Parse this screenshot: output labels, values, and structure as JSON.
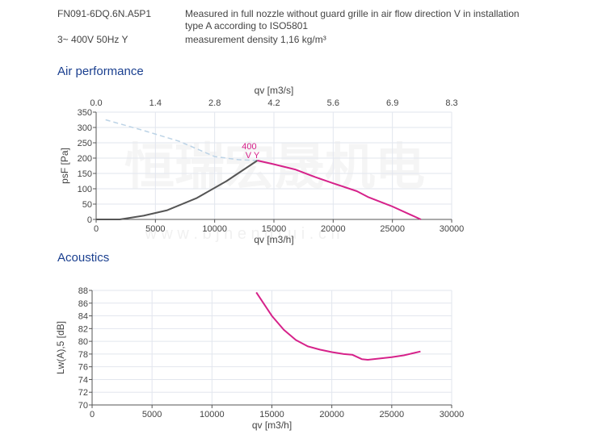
{
  "header": {
    "model": "FN091-6DQ.6N.A5P1",
    "supply": "3~ 400V 50Hz Y",
    "note1": "Measured in full nozzle without guard grille in air flow direction V in installation",
    "note2": "type A according to ISO5801",
    "note3": "measurement density 1,16 kg/m³"
  },
  "watermark": {
    "cn": "恒瑞宏晟机电",
    "url": "w w w . b j h e n g r u i . c n"
  },
  "colors": {
    "curve": "#d6228a",
    "lower": "#555555",
    "dashed": "#bcd3e6",
    "grid": "#e2e6ee",
    "title": "#1a3f8f"
  },
  "chart_data": [
    {
      "type": "line",
      "title": "Air performance",
      "xlabel": "qv [m3/h]",
      "x2label": "qv [m3/s]",
      "ylabel": "psF [Pa]",
      "xlim": [
        0,
        30000
      ],
      "ylim": [
        0,
        350
      ],
      "xticks": [
        "0",
        "5000",
        "10000",
        "15000",
        "20000",
        "25000",
        "30000"
      ],
      "x2ticks": [
        "0.0",
        "1.4",
        "2.8",
        "4.2",
        "5.6",
        "6.9",
        "8.3"
      ],
      "yticks": [
        "0",
        "50",
        "100",
        "150",
        "200",
        "250",
        "300",
        "350"
      ],
      "grid": true,
      "annotation": {
        "line1": "400",
        "line2": "V Y",
        "x": 13600,
        "y": 192
      },
      "series": [
        {
          "style": "dashed",
          "color": "#bcd3e6",
          "points": [
            [
              800,
              325
            ],
            [
              4000,
              290
            ],
            [
              7000,
              255
            ],
            [
              10000,
              205
            ],
            [
              12000,
              195
            ],
            [
              13600,
              192
            ]
          ]
        },
        {
          "style": "solid",
          "color": "#555555",
          "points": [
            [
              0,
              0
            ],
            [
              2000,
              0
            ],
            [
              4000,
              12
            ],
            [
              6000,
              30
            ],
            [
              8500,
              70
            ],
            [
              11000,
              125
            ],
            [
              13600,
              192
            ]
          ]
        },
        {
          "style": "solid",
          "color": "#d6228a",
          "points": [
            [
              13600,
              192
            ],
            [
              15000,
              180
            ],
            [
              16800,
              163
            ],
            [
              18500,
              138
            ],
            [
              20000,
              118
            ],
            [
              22000,
              92
            ],
            [
              23000,
              72
            ],
            [
              25000,
              42
            ],
            [
              27400,
              0
            ]
          ]
        }
      ]
    },
    {
      "type": "line",
      "title": "Acoustics",
      "xlabel": "qv [m3/h]",
      "ylabel": "Lw(A),5 [dB]",
      "xlim": [
        0,
        30000
      ],
      "ylim": [
        70,
        88
      ],
      "xticks": [
        "0",
        "5000",
        "10000",
        "15000",
        "20000",
        "25000",
        "30000"
      ],
      "yticks": [
        "70",
        "72",
        "74",
        "76",
        "78",
        "80",
        "82",
        "84",
        "86",
        "88"
      ],
      "grid": true,
      "series": [
        {
          "style": "solid",
          "color": "#d6228a",
          "points": [
            [
              13700,
              87.7
            ],
            [
              15000,
              84
            ],
            [
              16000,
              81.8
            ],
            [
              17000,
              80.2
            ],
            [
              18000,
              79.2
            ],
            [
              19000,
              78.7
            ],
            [
              20000,
              78.3
            ],
            [
              21000,
              78
            ],
            [
              21700,
              77.9
            ],
            [
              22500,
              77.2
            ],
            [
              23000,
              77.1
            ],
            [
              24000,
              77.3
            ],
            [
              25000,
              77.5
            ],
            [
              26000,
              77.8
            ],
            [
              27400,
              78.4
            ]
          ]
        }
      ]
    }
  ]
}
